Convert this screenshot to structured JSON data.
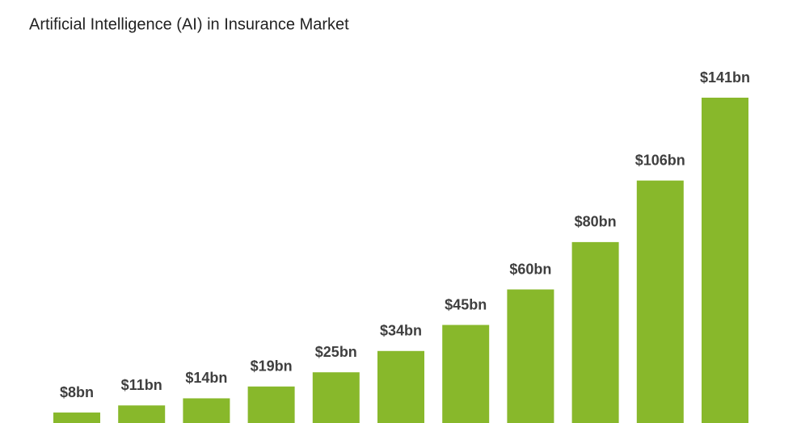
{
  "chart_data": {
    "type": "bar",
    "title": "Artificial Intelligence (AI) in Insurance Market",
    "values": [
      8,
      11,
      14,
      19,
      25,
      34,
      45,
      60,
      80,
      106,
      141
    ],
    "value_labels": [
      "$8bn",
      "$11bn",
      "$14bn",
      "$19bn",
      "$25bn",
      "$34bn",
      "$45bn",
      "$60bn",
      "$80bn",
      "$106bn",
      "$141bn"
    ],
    "color": "#88b82b"
  }
}
